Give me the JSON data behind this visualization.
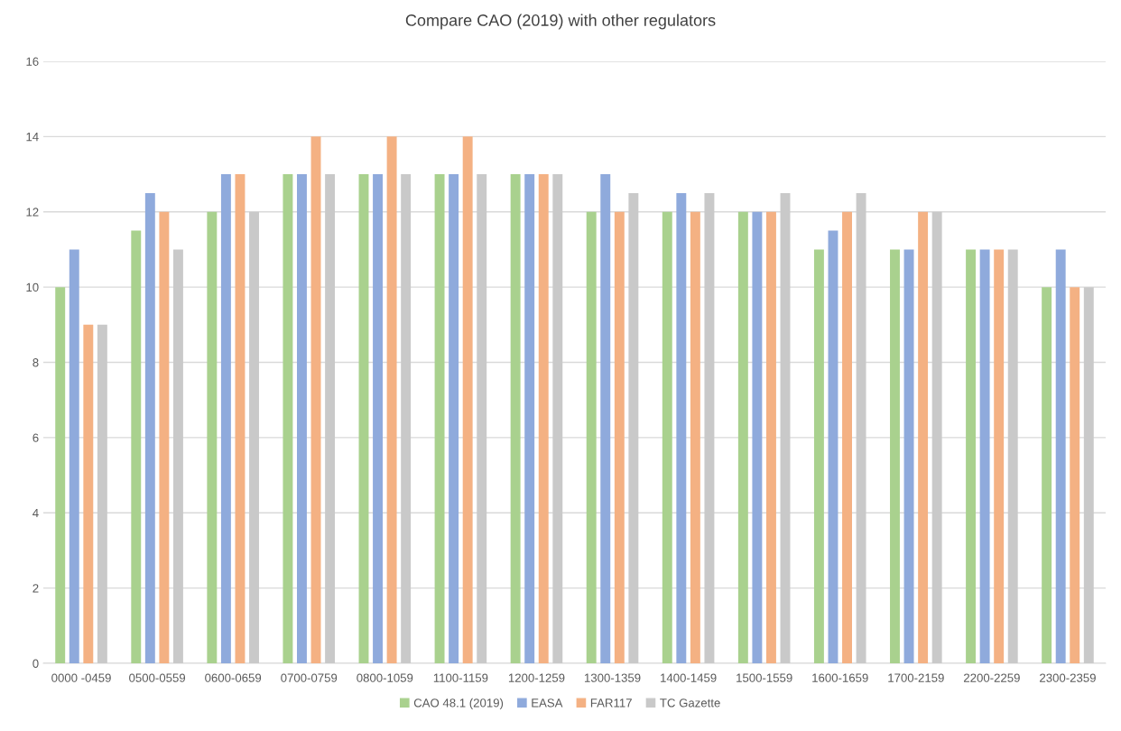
{
  "chart_data": {
    "type": "bar",
    "title": "Compare CAO (2019) with other regulators",
    "categories": [
      "0000 -0459",
      "0500-0559",
      "0600-0659",
      "0700-0759",
      "0800-1059",
      "1100-1159",
      "1200-1259",
      "1300-1359",
      "1400-1459",
      "1500-1559",
      "1600-1659",
      "1700-2159",
      "2200-2259",
      "2300-2359"
    ],
    "series": [
      {
        "name": "CAO 48.1 (2019)",
        "color": "#a9d18e",
        "values": [
          10,
          11.5,
          12,
          13,
          13,
          13,
          13,
          12,
          12,
          12,
          11,
          11,
          11,
          10
        ]
      },
      {
        "name": "EASA",
        "color": "#8faadc",
        "values": [
          11,
          12.5,
          13,
          13,
          13,
          13,
          13,
          13,
          12.5,
          12,
          11.5,
          11,
          11,
          11
        ]
      },
      {
        "name": "FAR117",
        "color": "#f4b183",
        "values": [
          9,
          12,
          13,
          14,
          14,
          14,
          13,
          12,
          12,
          12,
          12,
          12,
          11,
          10
        ]
      },
      {
        "name": "TC Gazette",
        "color": "#c9c9c9",
        "values": [
          9,
          11,
          12,
          13,
          13,
          13,
          13,
          12.5,
          12.5,
          12.5,
          12.5,
          12,
          11,
          10
        ]
      }
    ],
    "ylim": [
      0,
      16
    ],
    "yticks": [
      0,
      2,
      4,
      6,
      8,
      10,
      12,
      14,
      16
    ],
    "grid": "y",
    "legend": "bottom"
  }
}
